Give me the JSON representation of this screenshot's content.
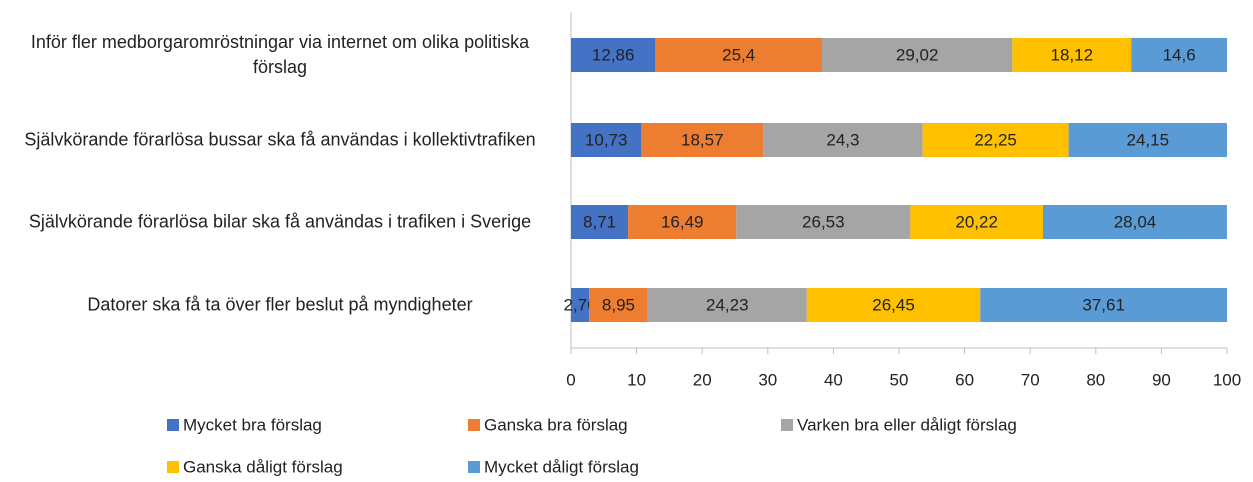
{
  "chart_data": {
    "type": "stacked-bar-horizontal",
    "categories": [
      "Inför fler medborgaromröstningar via internet om olika politiska förslag",
      "Självkörande förarlösa bussar ska få användas i kollektivtrafiken",
      "Självkörande förarlösa bilar ska få användas i trafiken i Sverige",
      "Datorer ska få ta över fler beslut på myndigheter"
    ],
    "series": [
      {
        "name": "Mycket bra förslag",
        "color": "#4472c4",
        "values": [
          12.86,
          10.73,
          8.71,
          2.76
        ],
        "value_labels": [
          "12,86",
          "10,73",
          "8,71",
          "2,76"
        ]
      },
      {
        "name": "Ganska bra förslag",
        "color": "#ed7d31",
        "values": [
          25.4,
          18.57,
          16.49,
          8.95
        ],
        "value_labels": [
          "25,4",
          "18,57",
          "16,49",
          "8,95"
        ]
      },
      {
        "name": "Varken bra eller dåligt förslag",
        "color": "#a5a5a5",
        "values": [
          29.02,
          24.3,
          26.53,
          24.23
        ],
        "value_labels": [
          "29,02",
          "24,3",
          "26,53",
          "24,23"
        ]
      },
      {
        "name": "Ganska dåligt förslag",
        "color": "#ffc000",
        "values": [
          18.12,
          22.25,
          20.22,
          26.45
        ],
        "value_labels": [
          "18,12",
          "22,25",
          "20,22",
          "26,45"
        ]
      },
      {
        "name": "Mycket dåligt förslag",
        "color": "#5b9bd5",
        "values": [
          14.6,
          24.15,
          28.04,
          37.61
        ],
        "value_labels": [
          "14,6",
          "24,15",
          "28,04",
          "37,61"
        ]
      }
    ],
    "xlim": [
      0,
      100
    ],
    "xticks": [
      0,
      10,
      20,
      30,
      40,
      50,
      60,
      70,
      80,
      90,
      100
    ],
    "legend": "bottom"
  }
}
